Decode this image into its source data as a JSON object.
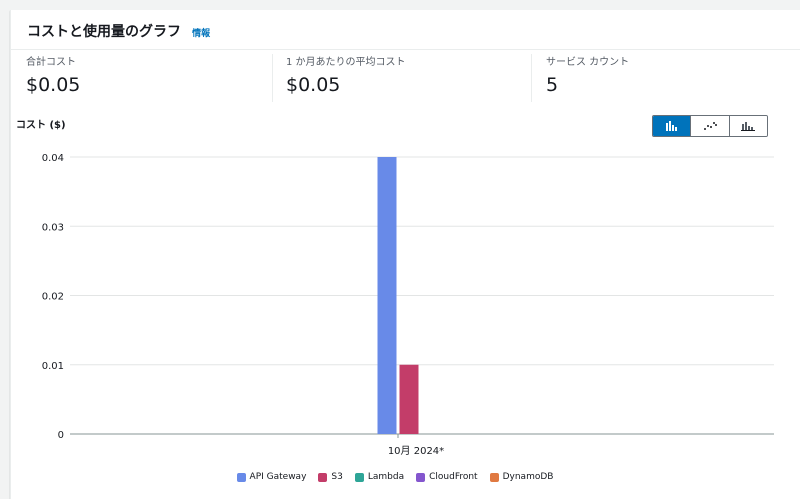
{
  "header": {
    "title": "コストと使用量のグラフ",
    "info": "情報"
  },
  "metrics": [
    {
      "label": "合計コスト",
      "value": "$0.05"
    },
    {
      "label": "1 か月あたりの平均コスト",
      "value": "$0.05"
    },
    {
      "label": "サービス カウント",
      "value": "5"
    }
  ],
  "chart_controls": {
    "buttons": [
      {
        "icon": "bar-chart-icon",
        "active": true
      },
      {
        "icon": "line-chart-icon",
        "active": false
      },
      {
        "icon": "stacked-bar-chart-icon",
        "active": false
      }
    ]
  },
  "chart_data": {
    "type": "bar",
    "title": "",
    "ylabel": "コスト ($)",
    "xlabel": "",
    "categories": [
      "10月 2024*"
    ],
    "ylim": [
      0,
      0.04
    ],
    "yticks": [
      "0",
      "0.01",
      "0.02",
      "0.03",
      "0.04"
    ],
    "grid": true,
    "legend_position": "bottom",
    "series": [
      {
        "name": "API Gateway",
        "values": [
          0.04
        ],
        "color": "#688ae8"
      },
      {
        "name": "S3",
        "values": [
          0.01
        ],
        "color": "#c33d69"
      },
      {
        "name": "Lambda",
        "values": [
          0
        ],
        "color": "#2ea597"
      },
      {
        "name": "CloudFront",
        "values": [
          0
        ],
        "color": "#8456ce"
      },
      {
        "name": "DynamoDB",
        "values": [
          0
        ],
        "color": "#e07941"
      }
    ]
  }
}
